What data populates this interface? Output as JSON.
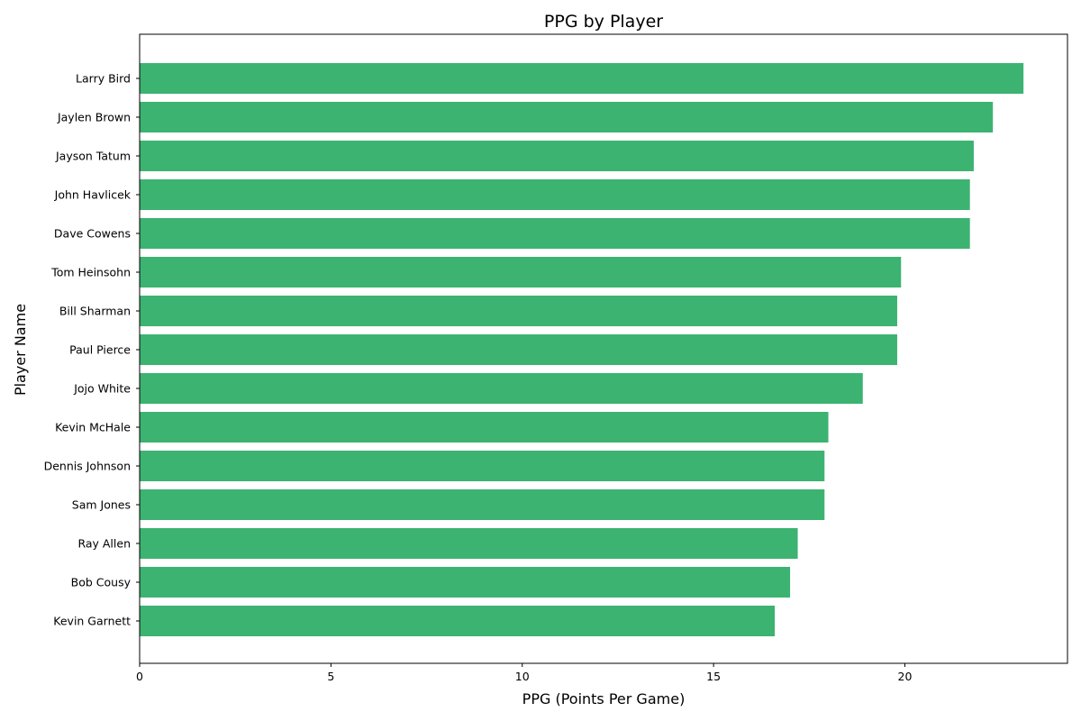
{
  "chart_data": {
    "type": "bar",
    "orientation": "horizontal",
    "title": "PPG by Player",
    "xlabel": "PPG (Points Per Game)",
    "ylabel": "Player Name",
    "xlim": [
      0,
      24.25
    ],
    "xticks": [
      0,
      5,
      10,
      15,
      20
    ],
    "grid": false,
    "bar_color": "#3cb371",
    "categories": [
      "Larry Bird",
      "Jaylen Brown",
      "Jayson Tatum",
      "John Havlicek",
      "Dave Cowens",
      "Tom Heinsohn",
      "Bill Sharman",
      "Paul Pierce",
      "Jojo White",
      "Kevin McHale",
      "Dennis Johnson",
      "Sam Jones",
      "Ray Allen",
      "Bob Cousy",
      "Kevin Garnett"
    ],
    "values": [
      23.1,
      22.3,
      21.8,
      21.7,
      21.7,
      19.9,
      19.8,
      19.8,
      18.9,
      18.0,
      17.9,
      17.9,
      17.2,
      17.0,
      16.6
    ]
  }
}
